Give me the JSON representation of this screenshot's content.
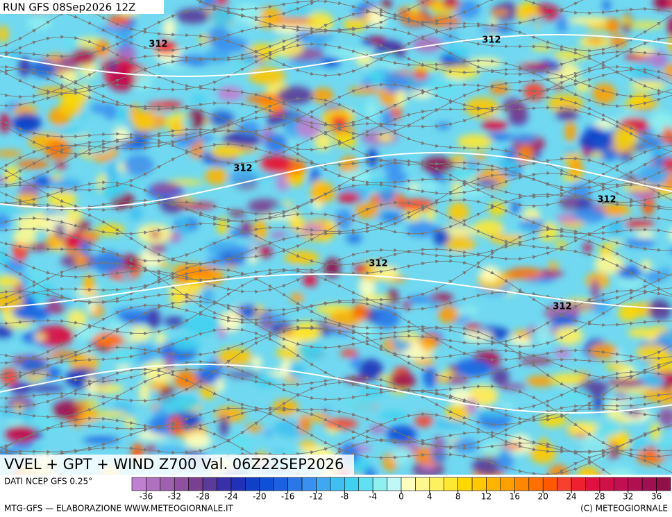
{
  "header": {
    "run": "RUN GFS 08Sep2026 12Z"
  },
  "map": {
    "title": "VVEL + GPT + WIND Z700 Val. 06Z22SEP2026",
    "contour_labels": [
      "312",
      "312",
      "312",
      "312",
      "312",
      "312"
    ]
  },
  "legend": {
    "source": "DATI NCEP GFS 0.25°",
    "range": [
      -38,
      38
    ],
    "ticks": [
      -36,
      -32,
      -28,
      -24,
      -20,
      -16,
      -12,
      -8,
      -4,
      0,
      4,
      8,
      12,
      16,
      20,
      24,
      28,
      32,
      36
    ],
    "colors": [
      "#c080d0",
      "#b070c0",
      "#a060b0",
      "#9050a0",
      "#7a4090",
      "#5a3a9a",
      "#3a30a8",
      "#2030b8",
      "#1040c8",
      "#1050d8",
      "#1a60e0",
      "#2a78e8",
      "#3a90f0",
      "#40a8f0",
      "#40c0f0",
      "#40d0f0",
      "#60e0f0",
      "#90f0f0",
      "#c0f8f8",
      "#ffffc0",
      "#fff890",
      "#fff060",
      "#ffe830",
      "#ffd800",
      "#ffc800",
      "#ffb400",
      "#ffa000",
      "#ff8800",
      "#ff7000",
      "#ff5800",
      "#f84030",
      "#f02030",
      "#e01040",
      "#d01048",
      "#c01050",
      "#b01050",
      "#a01050",
      "#901048"
    ]
  },
  "footer": {
    "left": "MTG-GFS — ELABORAZIONE WWW.METEOGIORNALE.IT",
    "right": "(C) METEOGIORNALE"
  }
}
